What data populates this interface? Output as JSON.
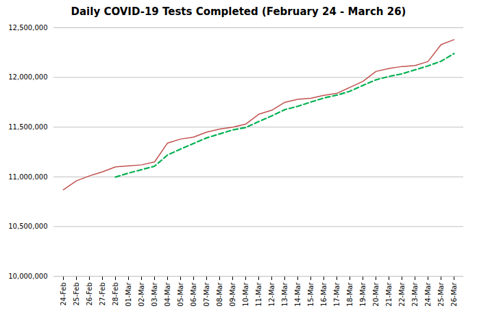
{
  "chart_data": {
    "type": "line",
    "title": "Daily COVID-19 Tests Completed (February 24 - March 26)",
    "categories": [
      "24-Feb",
      "25-Feb",
      "26-Feb",
      "27-Feb",
      "28-Feb",
      "01-Mar",
      "02-Mar",
      "03-Mar",
      "04-Mar",
      "05-Mar",
      "06-Mar",
      "07-Mar",
      "08-Mar",
      "09-Mar",
      "10-Mar",
      "11-Mar",
      "12-Mar",
      "13-Mar",
      "14-Mar",
      "15-Mar",
      "16-Mar",
      "17-Mar",
      "18-Mar",
      "19-Mar",
      "20-Mar",
      "21-Mar",
      "22-Mar",
      "23-Mar",
      "24-Mar",
      "25-Mar",
      "26-Mar"
    ],
    "series": [
      {
        "color": "#c0504d",
        "line_style": "solid",
        "values": [
          10870000,
          10960000,
          11010000,
          11050000,
          11100000,
          11110000,
          11120000,
          11150000,
          11340000,
          11380000,
          11400000,
          11450000,
          11480000,
          11500000,
          11530000,
          11630000,
          11670000,
          11750000,
          11780000,
          11790000,
          11820000,
          11840000,
          11900000,
          11960000,
          12060000,
          12090000,
          12110000,
          12120000,
          12160000,
          12330000,
          12380000
        ]
      },
      {
        "color": "#00b050",
        "line_style": "dashed",
        "values": [
          null,
          null,
          null,
          null,
          10998000,
          11038000,
          11072000,
          11107000,
          11220000,
          11280000,
          11336000,
          11392000,
          11432000,
          11472000,
          11496000,
          11556000,
          11614000,
          11676000,
          11710000,
          11752000,
          11793000,
          11822000,
          11861000,
          11920000,
          11976000,
          12010000,
          12036000,
          12076000,
          12116000,
          12163000,
          12240000
        ]
      }
    ],
    "ylim": [
      10000000,
      12500000
    ],
    "yticks": [
      {
        "value": 10000000,
        "label": "10,000,000"
      },
      {
        "value": 10500000,
        "label": "10,500,000"
      },
      {
        "value": 11000000,
        "label": "11,000,000"
      },
      {
        "value": 11500000,
        "label": "11,500,000"
      },
      {
        "value": 12000000,
        "label": "12,000,000"
      },
      {
        "value": 12500000,
        "label": "12,500,000"
      }
    ],
    "grid": true
  }
}
